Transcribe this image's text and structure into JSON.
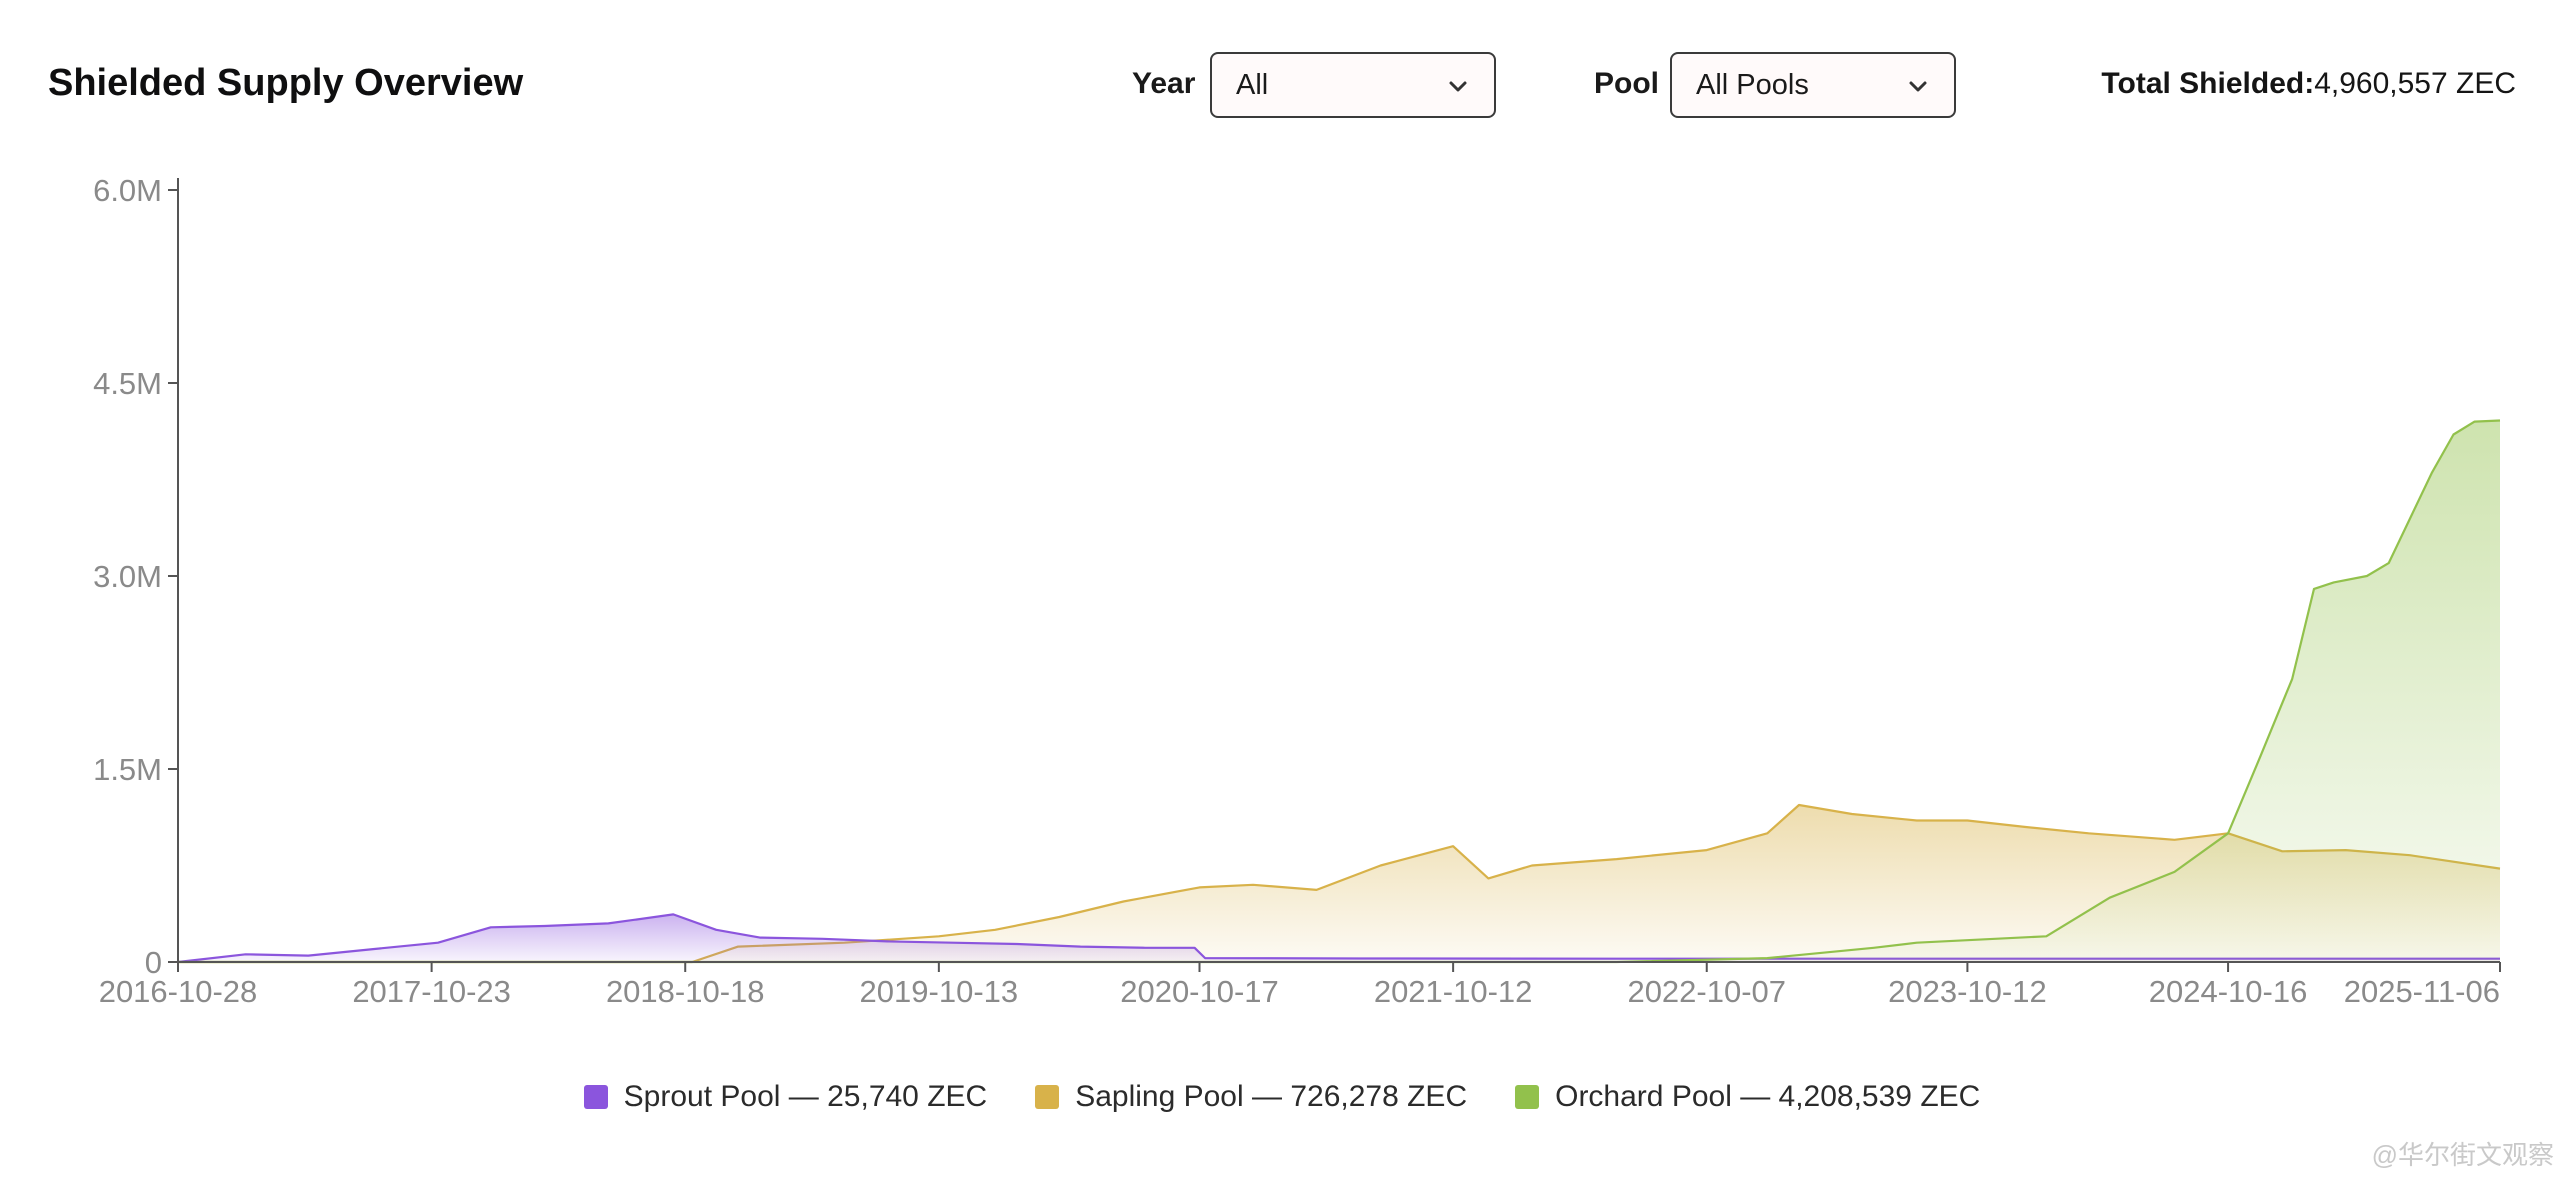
{
  "header": {
    "title": "Shielded Supply Overview",
    "year_label": "Year",
    "year_value": "All",
    "pool_label": "Pool",
    "pool_value": "All Pools",
    "total_label": "Total Shielded:",
    "total_value": "4,960,557 ZEC"
  },
  "icons": {
    "dropdown": "chevron-down-icon"
  },
  "colors": {
    "sprout": "#8b55dd",
    "sapling": "#d8b24a",
    "orchard": "#92c14c",
    "axis": "#555555",
    "tick_text": "#8a8a8a"
  },
  "legend": [
    {
      "label": "Sprout Pool — 25,740 ZEC",
      "color": "#8b55dd"
    },
    {
      "label": "Sapling Pool — 726,278 ZEC",
      "color": "#d8b24a"
    },
    {
      "label": "Orchard Pool — 4,208,539 ZEC",
      "color": "#92c14c"
    }
  ],
  "watermark": "@华尔街文观察",
  "chart_data": {
    "type": "area",
    "title": "",
    "xlabel": "",
    "ylabel": "",
    "ylim": [
      0,
      6000000
    ],
    "yticks": [
      0,
      1500000,
      3000000,
      4500000,
      6000000
    ],
    "ytick_labels": [
      "0",
      "1.5M",
      "3.0M",
      "4.5M",
      "6.0M"
    ],
    "xlim": [
      "2016-10-28",
      "2025-11-06"
    ],
    "xticks": [
      "2016-10-28",
      "2017-10-23",
      "2018-10-18",
      "2019-10-13",
      "2020-10-17",
      "2021-10-12",
      "2022-10-07",
      "2023-10-12",
      "2024-10-16",
      "2025-11-06"
    ],
    "grid": false,
    "legend_position": "bottom-center",
    "series": [
      {
        "name": "Sprout Pool",
        "color": "#8b55dd",
        "x": [
          "2016-10-28",
          "2017-02-01",
          "2017-05-01",
          "2017-08-01",
          "2017-11-01",
          "2018-01-15",
          "2018-04-01",
          "2018-07-01",
          "2018-10-01",
          "2018-12-01",
          "2019-02-01",
          "2019-05-01",
          "2019-08-01",
          "2019-11-01",
          "2020-02-01",
          "2020-05-01",
          "2020-08-01",
          "2020-10-10",
          "2020-10-25",
          "2021-06-01",
          "2022-06-01",
          "2023-06-01",
          "2024-06-01",
          "2025-11-06"
        ],
        "y": [
          0,
          60000,
          50000,
          100000,
          150000,
          270000,
          280000,
          300000,
          370000,
          250000,
          190000,
          180000,
          160000,
          150000,
          140000,
          120000,
          110000,
          110000,
          30000,
          27000,
          26000,
          26000,
          26000,
          25740
        ]
      },
      {
        "name": "Sapling Pool",
        "color": "#d8b24a",
        "x": [
          "2016-10-28",
          "2018-10-28",
          "2019-01-01",
          "2019-06-01",
          "2019-10-13",
          "2020-01-01",
          "2020-04-01",
          "2020-07-01",
          "2020-10-17",
          "2021-01-01",
          "2021-04-01",
          "2021-07-01",
          "2021-10-12",
          "2021-12-01",
          "2022-02-01",
          "2022-06-01",
          "2022-10-07",
          "2023-01-01",
          "2023-02-15",
          "2023-05-01",
          "2023-08-01",
          "2023-10-12",
          "2024-01-01",
          "2024-04-01",
          "2024-08-01",
          "2024-10-16",
          "2025-01-01",
          "2025-04-01",
          "2025-07-01",
          "2025-11-06"
        ],
        "y": [
          0,
          0,
          120000,
          150000,
          200000,
          250000,
          350000,
          470000,
          580000,
          600000,
          560000,
          750000,
          900000,
          650000,
          750000,
          800000,
          870000,
          1000000,
          1220000,
          1150000,
          1100000,
          1100000,
          1050000,
          1000000,
          950000,
          1000000,
          860000,
          870000,
          830000,
          726278
        ]
      },
      {
        "name": "Orchard Pool",
        "color": "#92c14c",
        "x": [
          "2016-10-28",
          "2022-06-01",
          "2023-01-01",
          "2023-06-01",
          "2023-08-01",
          "2024-02-01",
          "2024-05-01",
          "2024-08-01",
          "2024-10-16",
          "2024-12-01",
          "2025-01-15",
          "2025-02-15",
          "2025-03-15",
          "2025-05-01",
          "2025-06-01",
          "2025-08-01",
          "2025-09-01",
          "2025-10-01",
          "2025-11-06"
        ],
        "y": [
          0,
          0,
          30000,
          110000,
          150000,
          200000,
          500000,
          700000,
          1000000,
          1600000,
          2200000,
          2900000,
          2950000,
          3000000,
          3100000,
          3800000,
          4100000,
          4200000,
          4208539
        ]
      }
    ]
  }
}
